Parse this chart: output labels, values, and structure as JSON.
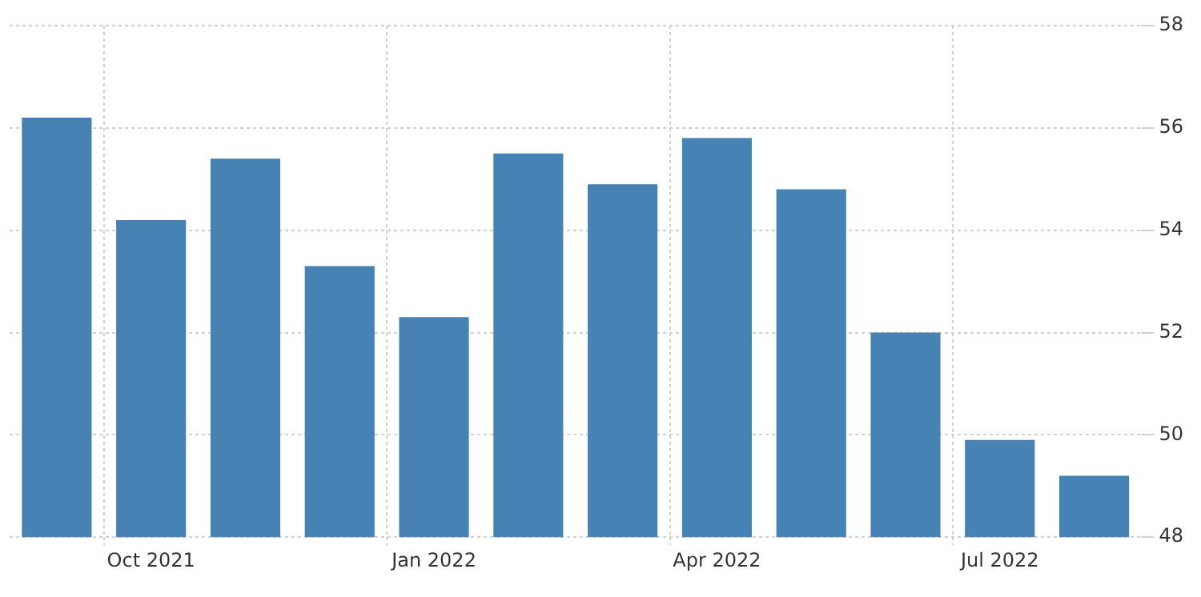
{
  "chart_data": {
    "type": "bar",
    "categories": [
      null,
      "Oct 2021",
      null,
      null,
      "Jan 2022",
      null,
      null,
      "Apr 2022",
      null,
      null,
      "Jul 2022",
      null
    ],
    "values": [
      56.2,
      54.2,
      55.4,
      53.3,
      52.3,
      55.5,
      54.9,
      55.8,
      54.8,
      52.0,
      49.9,
      49.2
    ],
    "color": "#4682b4",
    "ylim": [
      48,
      58
    ],
    "yticks": [
      48,
      50,
      52,
      54,
      56,
      58
    ],
    "grid": true,
    "legend": false
  }
}
